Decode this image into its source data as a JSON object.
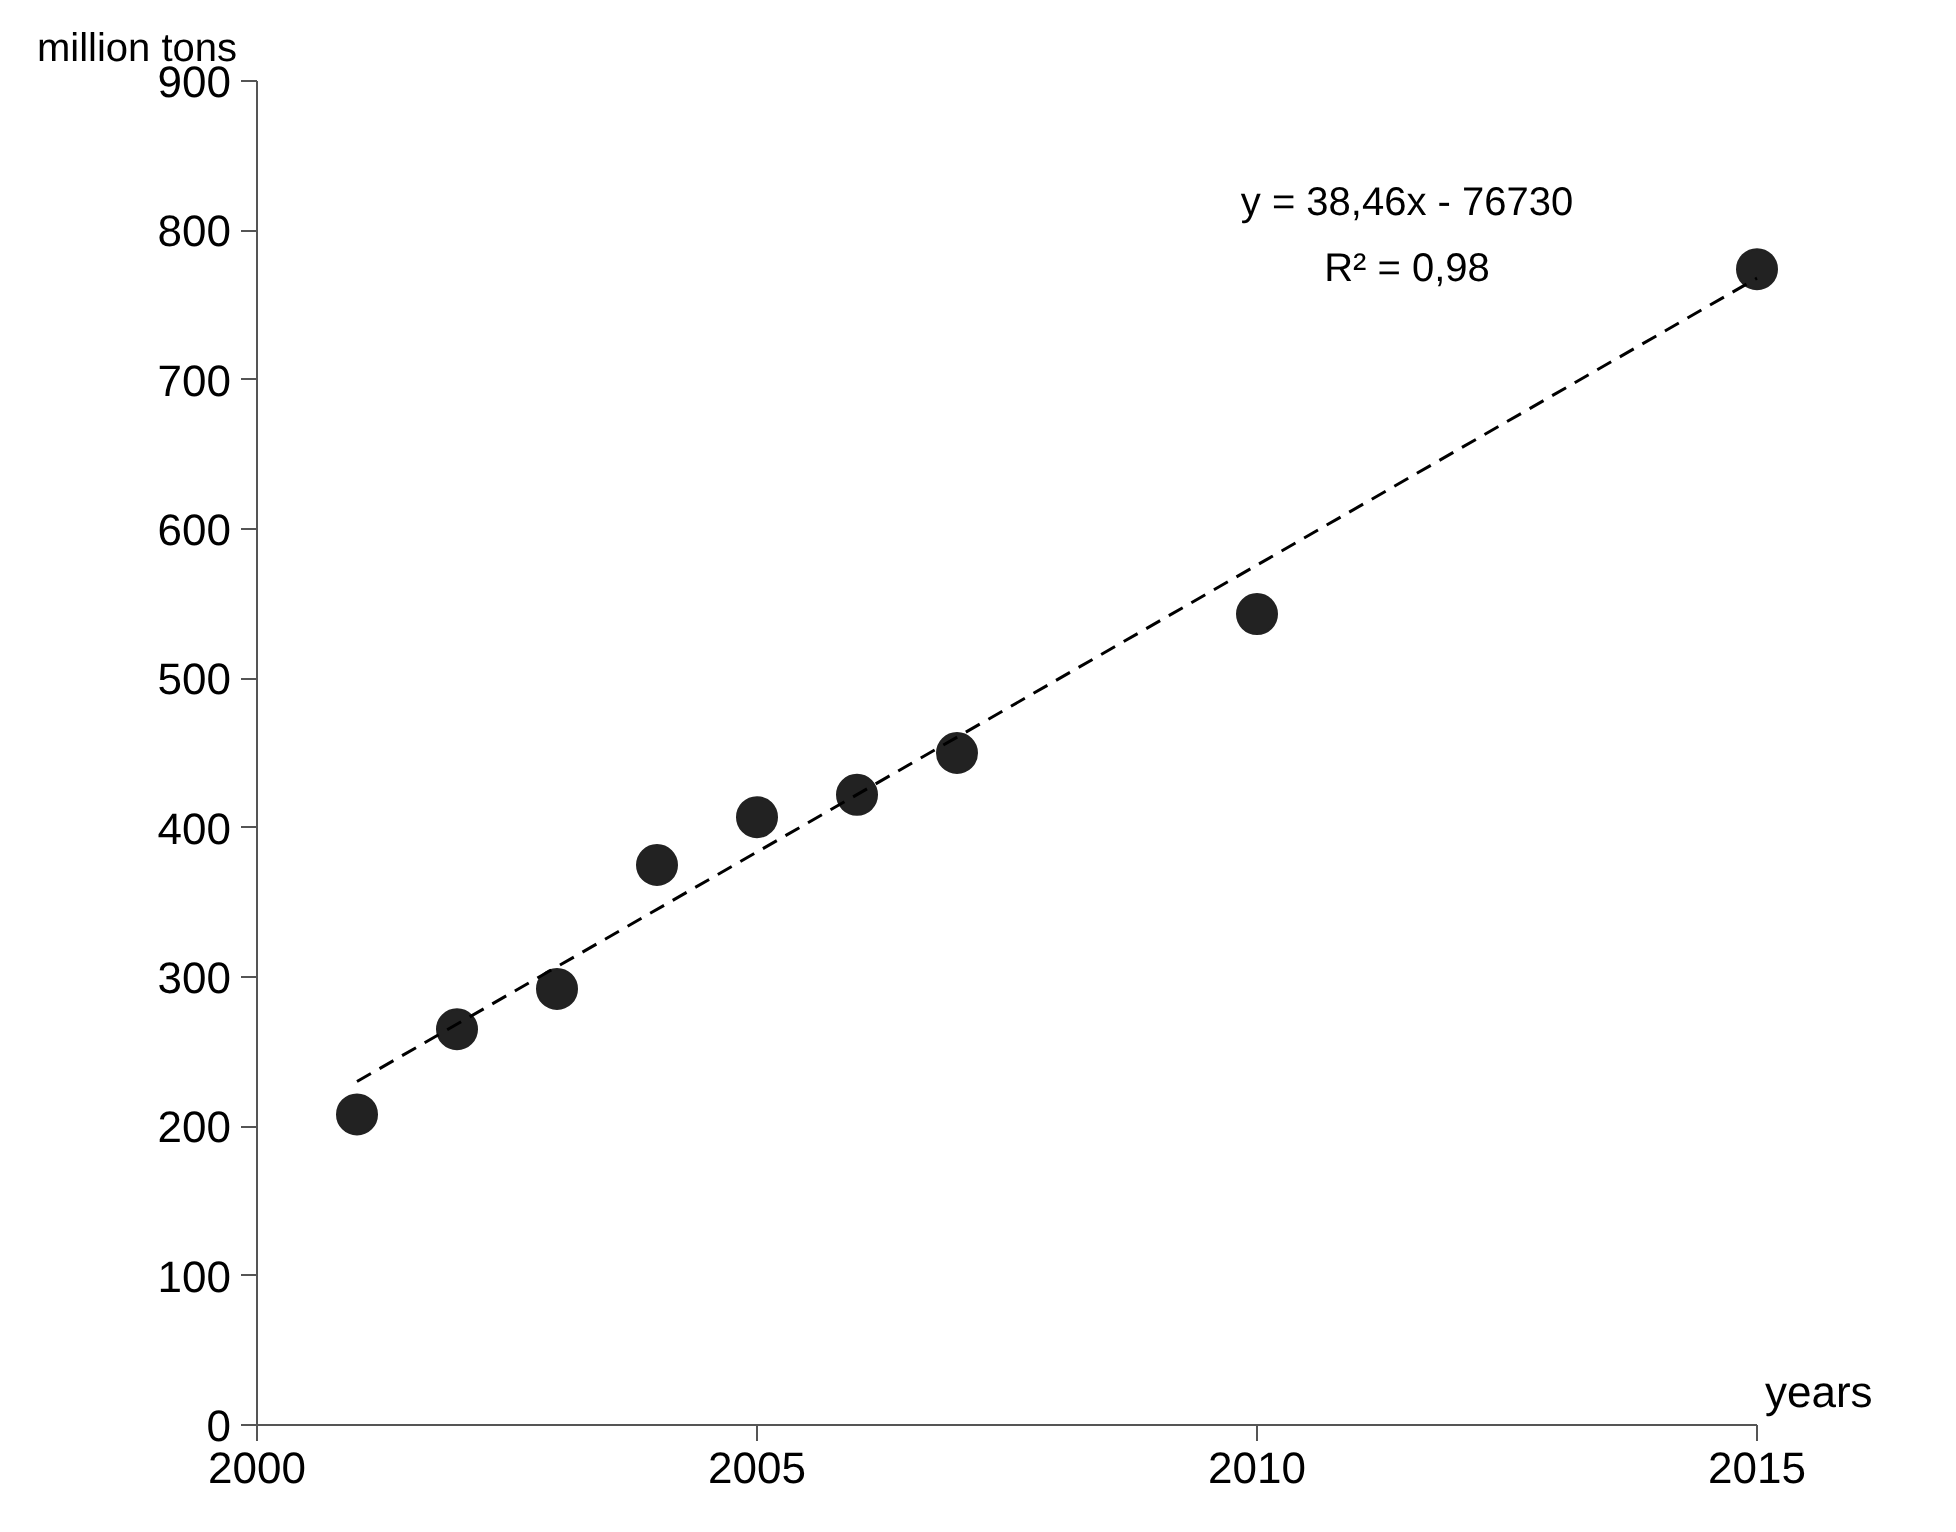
{
  "chart_data": {
    "type": "scatter",
    "ylabel": "million tons",
    "xlabel": "years",
    "x": [
      2001,
      2002,
      2003,
      2004,
      2005,
      2006,
      2007,
      2010,
      2015
    ],
    "series": [
      {
        "color": "#222222",
        "values": [
          208,
          265,
          292,
          375,
          407,
          422,
          450,
          543,
          774
        ],
        "marker": "circle"
      },
      {
        "type": "line",
        "color": "#000000",
        "x": [
          2001,
          2015
        ],
        "values": [
          230,
          768
        ],
        "line_style": "dashed",
        "marker": "none"
      }
    ],
    "annotations": [
      "y = 38,46x - 76730",
      "R² = 0,98"
    ],
    "xlim": [
      2000,
      2015
    ],
    "xticks": [
      2000,
      2005,
      2010,
      2015
    ],
    "ylim": [
      0,
      900
    ],
    "yticks": [
      0,
      100,
      200,
      300,
      400,
      500,
      600,
      700,
      800,
      900
    ],
    "grid": false
  }
}
